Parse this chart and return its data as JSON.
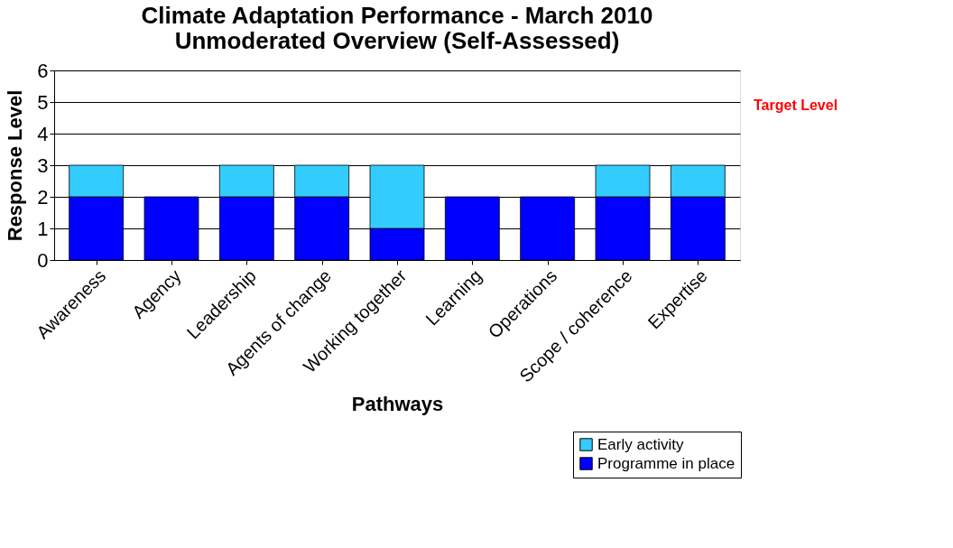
{
  "chart_data": {
    "type": "bar",
    "title": [
      "Climate Adaptation Performance - March 2010",
      "Unmoderated Overview (Self-Assessed)"
    ],
    "xlabel": "Pathways",
    "ylabel": "Response Level",
    "categories": [
      "Awareness",
      "Agency",
      "Leadership",
      "Agents of change",
      "Working together",
      "Learning",
      "Operations",
      "Scope / coherence",
      "Expertise"
    ],
    "stacked": true,
    "series": [
      {
        "name": "Programme in place",
        "color": "#0000ff",
        "values": [
          2,
          2,
          2,
          2,
          1,
          2,
          2,
          2,
          2
        ]
      },
      {
        "name": "Early activity",
        "color": "#33ccff",
        "values": [
          1,
          null,
          1,
          1,
          2,
          null,
          null,
          1,
          1
        ]
      }
    ],
    "ylim": [
      0,
      6
    ],
    "yticks": [
      0,
      1,
      2,
      3,
      4,
      5,
      6
    ],
    "grid": "y",
    "legend": "bottom right",
    "annotations": [
      "Target Level"
    ]
  }
}
